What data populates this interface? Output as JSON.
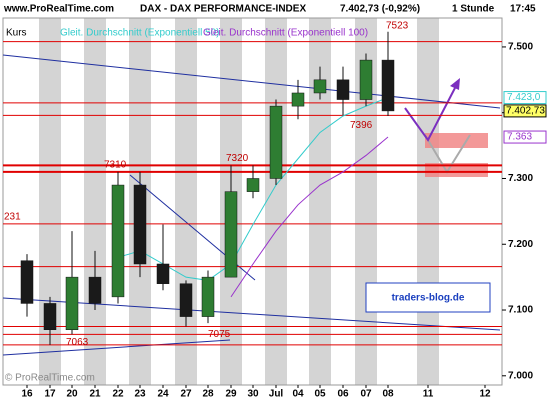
{
  "header": {
    "site": "www.ProRealTime.com",
    "instrument": "DAX - DAX PERFORMANCE-INDEX",
    "quote": "7.402,73 (-0,92%)",
    "interval": "1 Stunde",
    "time": "17:45"
  },
  "watermark": "© ProRealTime.com",
  "brand": "traders-blog.de",
  "chart_data": {
    "type": "candlestick",
    "categories": [
      "16",
      "17",
      "20",
      "21",
      "22",
      "23",
      "24",
      "27",
      "28",
      "29",
      "30",
      "Jul",
      "04",
      "05",
      "06",
      "07",
      "08",
      "11",
      "12"
    ],
    "candles": {
      "name": "Kurs",
      "up_color": "#2e7d32",
      "down_color": "#1a1a1a",
      "open": [
        7175,
        7110,
        7070,
        7150,
        7120,
        7290,
        7170,
        7140,
        7090,
        7150,
        7280,
        7300,
        7410,
        7430,
        7450,
        7420,
        7480,
        null,
        null
      ],
      "high": [
        7185,
        7120,
        7220,
        7190,
        7310,
        7310,
        7230,
        7145,
        7160,
        7320,
        7320,
        7420,
        7450,
        7470,
        7470,
        7490,
        7523,
        null,
        null
      ],
      "low": [
        7090,
        7047,
        7063,
        7100,
        7110,
        7150,
        7130,
        7075,
        7080,
        7150,
        7270,
        7290,
        7390,
        7420,
        7396,
        7410,
        7395,
        null,
        null
      ],
      "close": [
        7110,
        7070,
        7150,
        7110,
        7290,
        7170,
        7140,
        7090,
        7150,
        7280,
        7300,
        7410,
        7430,
        7450,
        7420,
        7480,
        7402.73,
        null,
        null
      ]
    },
    "series": [
      {
        "name": "Gleit. Durchschnitt (Exponentiell 50)",
        "color": "#33cccc",
        "values": [
          null,
          null,
          null,
          null,
          7180,
          7190,
          7170,
          7150,
          7145,
          7170,
          7230,
          7290,
          7330,
          7370,
          7395,
          7410,
          7423,
          null,
          null
        ],
        "last": {
          "value": 7423,
          "label": "7.423,0"
        }
      },
      {
        "name": "Gleit. Durchschnitt (Exponentiell 100)",
        "color": "#9933cc",
        "values": [
          null,
          null,
          null,
          null,
          null,
          null,
          null,
          null,
          null,
          7120,
          7170,
          7220,
          7260,
          7290,
          7310,
          7335,
          7363,
          null,
          null
        ],
        "last": {
          "value": 7363,
          "label": "7.363"
        }
      }
    ],
    "last_price": {
      "value": 7402.73,
      "label": "7.402,73"
    },
    "high_annotation": 7523,
    "levels": [
      7396,
      7320,
      7310,
      {
        "value": 7231,
        "label": "231"
      },
      7075,
      7063
    ],
    "lines": [
      7508,
      7415,
      7166,
      7047
    ],
    "level_color": "#e00000",
    "ylim": [
      6986,
      7544
    ],
    "yticks": [
      {
        "value": 7000,
        "label": "7.000"
      },
      {
        "value": 7100,
        "label": "7.100"
      },
      {
        "value": 7200,
        "label": "7.200"
      },
      {
        "value": 7300,
        "label": "7.300"
      },
      {
        "value": 7400,
        "label": "7.400"
      },
      {
        "value": 7500,
        "label": "7.500"
      }
    ]
  }
}
